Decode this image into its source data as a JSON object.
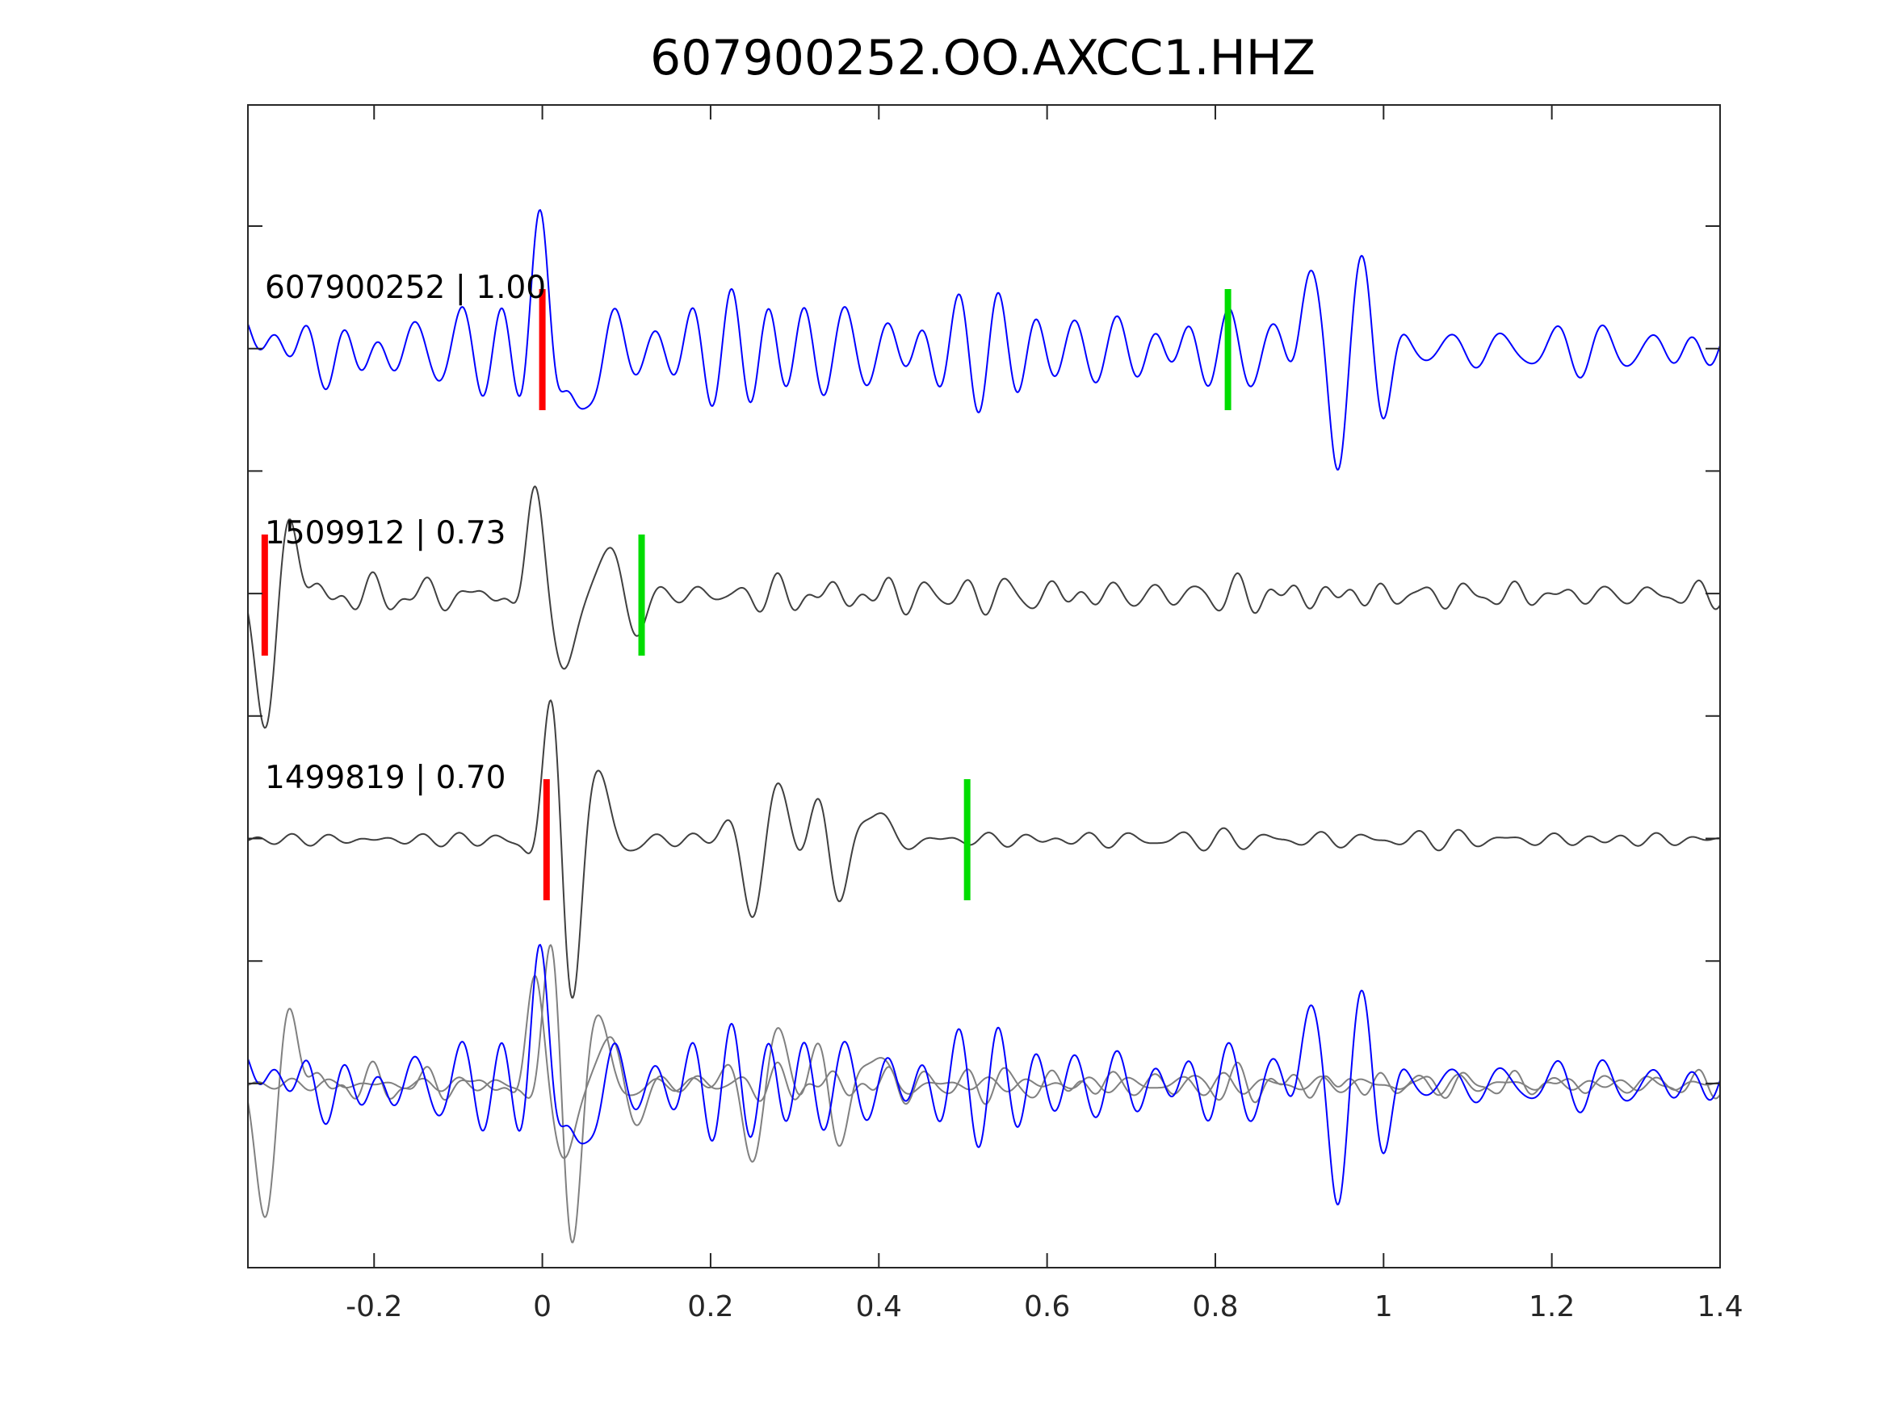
{
  "chart_data": {
    "type": "line",
    "title": "607900252.OO.AXCC1.HHZ",
    "xlabel": "",
    "ylabel": "",
    "xlim": [
      -0.35,
      1.4
    ],
    "x_ticks": [
      -0.2,
      0,
      0.2,
      0.4,
      0.6,
      0.8,
      1,
      1.2,
      1.4
    ],
    "x_tick_labels": [
      "-0.2",
      "0",
      "0.2",
      "0.4",
      "0.6",
      "0.8",
      "1",
      "1.2",
      "1.4"
    ],
    "y_tick_count": 9,
    "y_tick_labels": [],
    "grid": false,
    "traces": [
      {
        "label": "607900252 | 1.00",
        "color": "#0000ff",
        "red_pick_time": 0.0,
        "green_pick_time": 0.815,
        "features": [
          [
            -0.35,
            0.1,
            4,
            0.13
          ],
          [
            0.0,
            0.015,
            12,
            0.9
          ],
          [
            0.04,
            0.015,
            13,
            -0.95
          ],
          [
            0.91,
            0.015,
            13,
            0.65
          ],
          [
            0.945,
            0.015,
            14,
            -0.9
          ],
          [
            0.975,
            0.015,
            13,
            0.6
          ],
          [
            1.0,
            0.015,
            14,
            -0.5
          ],
          [
            0.13,
            0.3,
            22,
            0.3
          ],
          [
            0.5,
            0.25,
            22,
            0.22
          ]
        ],
        "noise": 0.3,
        "seed": 11
      },
      {
        "label": "1509912 | 0.73",
        "color": "#404040",
        "red_pick_time": -0.33,
        "green_pick_time": 0.118,
        "features": [
          [
            -0.33,
            0.015,
            9,
            -1.1
          ],
          [
            -0.3,
            0.015,
            9,
            0.6
          ],
          [
            -0.01,
            0.015,
            13,
            0.9
          ],
          [
            0.025,
            0.015,
            12,
            -0.6
          ],
          [
            0.08,
            0.02,
            13,
            0.35
          ],
          [
            0.12,
            0.02,
            13,
            -0.25
          ],
          [
            0.55,
            0.3,
            22,
            0.08
          ]
        ],
        "noise": 0.15,
        "seed": 29
      },
      {
        "label": "1499819 | 0.70",
        "color": "#404040",
        "red_pick_time": 0.005,
        "green_pick_time": 0.505,
        "features": [
          [
            0.01,
            0.015,
            13,
            1.05
          ],
          [
            0.035,
            0.015,
            13,
            -1.1
          ],
          [
            0.07,
            0.02,
            12,
            0.5
          ],
          [
            0.25,
            0.02,
            13,
            -0.6
          ],
          [
            0.28,
            0.02,
            12,
            0.35
          ],
          [
            0.33,
            0.02,
            13,
            0.3
          ],
          [
            0.35,
            0.02,
            13,
            -0.45
          ],
          [
            0.4,
            0.02,
            12,
            0.25
          ]
        ],
        "noise": 0.12,
        "seed": 53
      }
    ],
    "overlay": {
      "description_label": "",
      "traces": [
        {
          "source_index": 0,
          "color": "#0000ff"
        },
        {
          "source_index": 1,
          "color": "#808080"
        },
        {
          "source_index": 2,
          "color": "#808080"
        }
      ]
    }
  }
}
